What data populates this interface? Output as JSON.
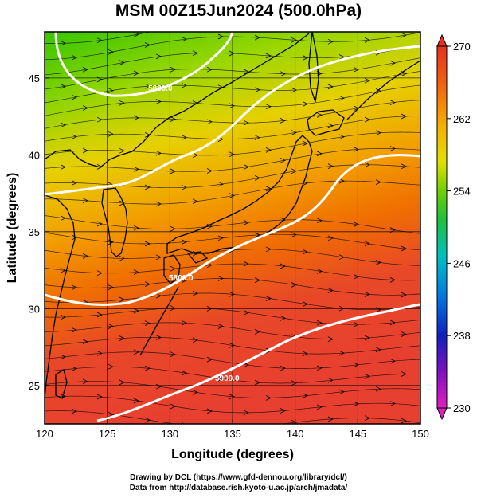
{
  "title": "MSM 00Z15Jun2024 (500.0hPa)",
  "axes": {
    "x_label": "Longitude (degrees)",
    "y_label": "Latitude  (degrees)",
    "x_ticks": [
      "120",
      "125",
      "130",
      "135",
      "140",
      "145",
      "150"
    ],
    "y_ticks": [
      "25",
      "30",
      "35",
      "40",
      "45"
    ]
  },
  "colorbar": {
    "labels": [
      "270",
      "262",
      "254",
      "246",
      "238",
      "230"
    ]
  },
  "contours": [
    {
      "label": "5880.0"
    },
    {
      "label": "5800.0"
    },
    {
      "label": "5900.0"
    }
  ],
  "credits": {
    "line1": "Drawing by DCL (https://www.gfd-dennou.org/library/dcl/)",
    "line2": "Data from http://database.rish.kyoto-u.ac.jp/arch/jmadata/"
  },
  "colors": {
    "cold": "#30c000",
    "warm": "#e03020",
    "contour": "#ffffff",
    "streamline": "#000000"
  },
  "chart_data": {
    "type": "heatmap",
    "x": [
      120,
      125,
      130,
      135,
      140,
      145,
      150
    ],
    "y": [
      25,
      30,
      35,
      40,
      45
    ],
    "xlim": [
      120,
      150
    ],
    "ylim": [
      22.5,
      48
    ],
    "colorbar_range": [
      230,
      270
    ],
    "contour_levels": [
      5800,
      5880,
      5900
    ],
    "grid": true
  }
}
